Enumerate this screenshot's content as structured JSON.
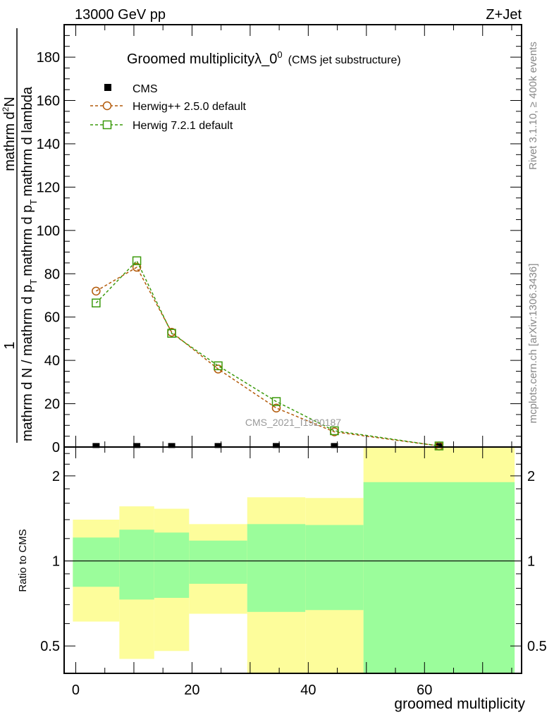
{
  "header": {
    "energy": "13000 GeV pp",
    "process": "Z+Jet"
  },
  "side_text": {
    "rivet": "Rivet 3.1.10, ≥ 400k events",
    "mcplots": "mcplots.cern.ch [arXiv:1306.3436]"
  },
  "watermark": "CMS_2021_I1920187",
  "colors": {
    "herwigpp": "#b35a0a",
    "herwig7": "#3c9a0c",
    "cms": "#000000",
    "band_inner": "#9bfd9b",
    "band_outer": "#fdfd9b"
  },
  "chart_data": [
    {
      "type": "line",
      "title": "Groomed multiplicityλ_0",
      "title_sup": "0",
      "subtitle": "(CMS jet substructure)",
      "ylabel_num1": "1",
      "ylabel_num2": "mathrm d",
      "ylabel_num2_sup": "2",
      "ylabel_num3": "N",
      "ylabel_den": "mathrm d N / mathrm d p",
      "ylabel_den2": "mathrm d p",
      "ylabel_den3": "mathrm d lambda",
      "ylabel_sub": "T",
      "xlim": [
        -2,
        76.7
      ],
      "ylim": [
        0,
        195
      ],
      "yticks": [
        "0",
        "20",
        "40",
        "60",
        "80",
        "100",
        "120",
        "140",
        "160",
        "180"
      ],
      "legend_position": "top-left",
      "series": [
        {
          "name": "CMS",
          "marker": "filled-square",
          "x": [
            3.5,
            10.5,
            16.5,
            24.5,
            34.5,
            44.5,
            62.5
          ],
          "y": [
            0.2,
            0.2,
            0.2,
            0.2,
            0.2,
            0.2,
            0.2
          ]
        },
        {
          "name": "Herwig++ 2.5.0 default",
          "marker": "open-circle",
          "x": [
            3.5,
            10.5,
            16.5,
            24.5,
            34.5,
            44.5,
            62.5
          ],
          "y": [
            72,
            83,
            53,
            36,
            18,
            7,
            0.5
          ]
        },
        {
          "name": "Herwig 7.2.1 default",
          "marker": "open-square",
          "x": [
            3.5,
            10.5,
            16.5,
            24.5,
            34.5,
            44.5,
            62.5
          ],
          "y": [
            66.5,
            86,
            52.5,
            37.5,
            21,
            7.5,
            0.5
          ]
        }
      ]
    },
    {
      "type": "area",
      "ylabel": "Ratio to CMS",
      "xlabel": "groomed multiplicity",
      "xticks": [
        "0",
        "20",
        "40",
        "60"
      ],
      "yticks": [
        "0.5",
        "1",
        "2"
      ],
      "yscale": "log",
      "ylim": [
        0.4,
        2.53
      ],
      "bins": [
        {
          "lo": -0.5,
          "hi": 7.5,
          "outer": [
            0.61,
            1.4
          ],
          "inner": [
            0.81,
            1.21
          ]
        },
        {
          "lo": 7.5,
          "hi": 13.5,
          "outer": [
            0.45,
            1.56
          ],
          "inner": [
            0.73,
            1.29
          ]
        },
        {
          "lo": 13.5,
          "hi": 19.5,
          "outer": [
            0.48,
            1.53
          ],
          "inner": [
            0.74,
            1.26
          ]
        },
        {
          "lo": 19.5,
          "hi": 29.5,
          "outer": [
            0.65,
            1.35
          ],
          "inner": [
            0.83,
            1.18
          ]
        },
        {
          "lo": 29.5,
          "hi": 39.5,
          "outer": [
            0.3,
            1.68
          ],
          "inner": [
            0.66,
            1.35
          ]
        },
        {
          "lo": 39.5,
          "hi": 49.5,
          "outer": [
            0.3,
            1.67
          ],
          "inner": [
            0.67,
            1.34
          ]
        },
        {
          "lo": 49.5,
          "hi": 75.5,
          "outer": [
            0.3,
            3.0
          ],
          "inner": [
            0.3,
            1.9
          ]
        }
      ]
    }
  ]
}
